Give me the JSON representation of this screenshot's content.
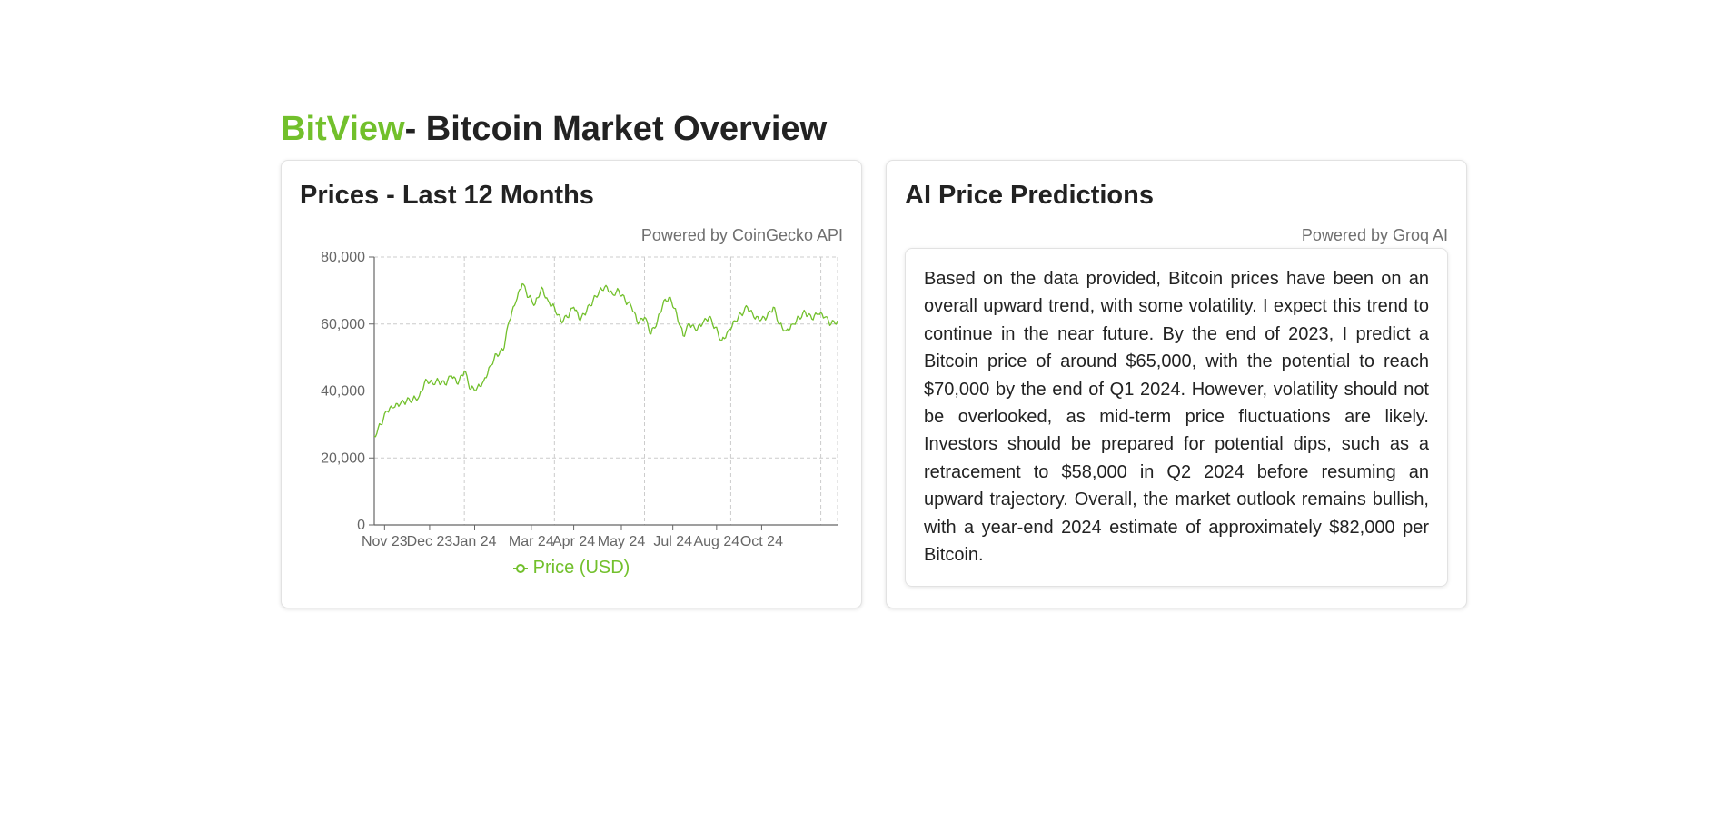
{
  "header": {
    "brand": "BitView",
    "title_rest": "- Bitcoin Market Overview"
  },
  "prices_card": {
    "title": "Prices - Last 12 Months",
    "powered_prefix": "Powered by ",
    "powered_link": "CoinGecko API"
  },
  "predictions_card": {
    "title": "AI Price Predictions",
    "powered_prefix": "Powered by ",
    "powered_link": "Groq AI",
    "text": "Based on the data provided, Bitcoin prices have been on an overall upward trend, with some volatility. I expect this trend to continue in the near future. By the end of 2023, I predict a Bitcoin price of around $65,000, with the potential to reach $70,000 by the end of Q1 2024. However, volatility should not be overlooked, as mid-term price fluctuations are likely. Investors should be prepared for potential dips, such as a retracement to $58,000 in Q2 2024 before resuming an upward trajectory. Overall, the market outlook remains bullish, with a year-end 2024 estimate of approximately $82,000 per Bitcoin."
  },
  "colors": {
    "brand": "#72c02c",
    "line": "#72c02c",
    "grid": "#cccccc",
    "axis": "#666666",
    "muted_text": "#6f6f6f"
  },
  "chart_data": {
    "type": "line",
    "title": "",
    "xlabel": "",
    "ylabel": "",
    "ylim": [
      0,
      80000
    ],
    "y_ticks": [
      0,
      20000,
      40000,
      60000,
      80000
    ],
    "y_tick_labels": [
      "0",
      "20,000",
      "40,000",
      "60,000",
      "80,000"
    ],
    "x_tick_labels": [
      "Nov 23",
      "Dec 23",
      "Jan 24",
      "Mar 24",
      "Apr 24",
      "May 24",
      "Jul 24",
      "Aug 24",
      "Oct 24"
    ],
    "x_tick_positions": [
      8,
      43,
      78,
      122,
      155,
      192,
      232,
      266,
      301
    ],
    "grid": true,
    "legend_position": "bottom",
    "series": [
      {
        "name": "Price (USD)",
        "x": [
          0,
          5,
          10,
          15,
          20,
          25,
          30,
          35,
          40,
          45,
          50,
          55,
          60,
          65,
          70,
          75,
          80,
          85,
          90,
          95,
          100,
          105,
          110,
          115,
          120,
          125,
          130,
          135,
          140,
          145,
          150,
          155,
          160,
          165,
          170,
          175,
          180,
          185,
          190,
          195,
          200,
          205,
          210,
          215,
          220,
          225,
          230,
          235,
          240,
          245,
          250,
          255,
          260,
          265,
          270,
          275,
          280,
          285,
          290,
          295,
          300,
          305,
          310,
          315,
          320,
          325,
          330,
          335,
          340,
          345,
          350,
          355,
          360
        ],
        "values": [
          26500,
          30000,
          34000,
          35000,
          36000,
          37000,
          37500,
          38500,
          43500,
          42500,
          43000,
          42000,
          44500,
          42000,
          46000,
          40500,
          41000,
          43000,
          47500,
          51000,
          52000,
          61000,
          66500,
          72000,
          68000,
          66000,
          71000,
          67000,
          65000,
          61000,
          62000,
          65000,
          61000,
          64000,
          67000,
          70000,
          71500,
          69000,
          70000,
          67000,
          65000,
          60000,
          62000,
          57000,
          61000,
          67000,
          68000,
          63000,
          56500,
          60000,
          58000,
          60000,
          62000,
          59000,
          55000,
          58000,
          61000,
          63000,
          65000,
          62000,
          61000,
          62000,
          65000,
          60000,
          58000,
          60000,
          62000,
          63500,
          61500,
          63000,
          62000,
          60000,
          61000
        ]
      }
    ]
  }
}
